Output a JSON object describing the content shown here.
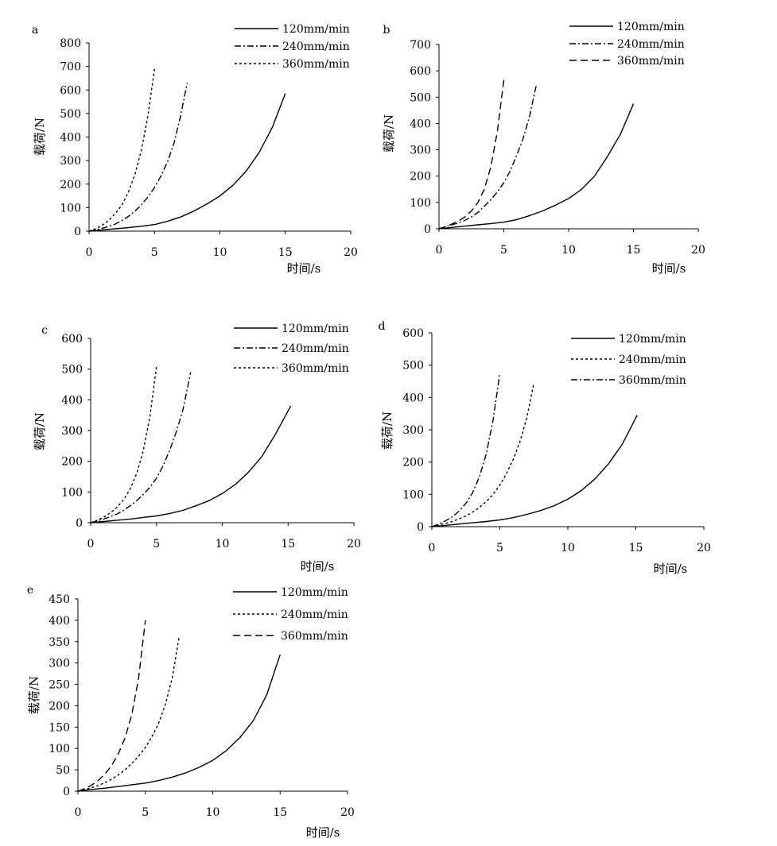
{
  "chart_data": [
    {
      "type": "line",
      "panel_label": "a",
      "xlabel": "时间/s",
      "ylabel": "载荷/N",
      "xlim": [
        0,
        20
      ],
      "ylim": [
        0,
        800
      ],
      "xticks": [
        0,
        5,
        10,
        15,
        20
      ],
      "yticks": [
        0,
        100,
        200,
        300,
        400,
        500,
        600,
        700,
        800
      ],
      "legend_position": "top-right",
      "series": [
        {
          "name": "120mm/min",
          "style": "solid",
          "x": [
            0,
            1,
            2,
            3,
            4,
            5,
            6,
            7,
            8,
            9,
            10,
            11,
            12,
            13,
            14,
            15
          ],
          "y": [
            0,
            5,
            10,
            15,
            21,
            28,
            42,
            60,
            85,
            115,
            150,
            195,
            255,
            335,
            440,
            585
          ]
        },
        {
          "name": "240mm/min",
          "style": "dashdot",
          "x": [
            0,
            0.5,
            1,
            1.5,
            2,
            2.5,
            3,
            3.5,
            4,
            4.5,
            5,
            5.5,
            6,
            6.5,
            7,
            7.5
          ],
          "y": [
            0,
            5,
            12,
            20,
            30,
            45,
            62,
            85,
            112,
            145,
            185,
            235,
            295,
            375,
            490,
            630
          ]
        },
        {
          "name": "360mm/min",
          "style": "dotted",
          "x": [
            0,
            0.5,
            1,
            1.5,
            2,
            2.5,
            3,
            3.5,
            4,
            4.5,
            5
          ],
          "y": [
            0,
            10,
            25,
            45,
            75,
            110,
            165,
            240,
            345,
            490,
            690
          ]
        }
      ]
    },
    {
      "type": "line",
      "panel_label": "b",
      "xlabel": "时间/s",
      "ylabel": "载荷/N",
      "xlim": [
        0,
        20
      ],
      "ylim": [
        0,
        700
      ],
      "xticks": [
        0,
        5,
        10,
        15,
        20
      ],
      "yticks": [
        0,
        100,
        200,
        300,
        400,
        500,
        600,
        700
      ],
      "legend_position": "top-right",
      "series": [
        {
          "name": "120mm/min",
          "style": "solid",
          "x": [
            0,
            1,
            2,
            3,
            4,
            5,
            6,
            7,
            8,
            9,
            10,
            11,
            12,
            13,
            14,
            15
          ],
          "y": [
            0,
            5,
            10,
            15,
            20,
            25,
            35,
            50,
            68,
            90,
            115,
            150,
            200,
            275,
            360,
            475
          ]
        },
        {
          "name": "240mm/min",
          "style": "dashdot",
          "x": [
            0,
            0.5,
            1,
            1.5,
            2,
            2.5,
            3,
            3.5,
            4,
            4.5,
            5,
            5.5,
            6,
            6.5,
            7,
            7.5
          ],
          "y": [
            0,
            8,
            15,
            22,
            32,
            45,
            62,
            85,
            110,
            140,
            175,
            220,
            280,
            345,
            430,
            545
          ]
        },
        {
          "name": "360mm/min",
          "style": "dashed",
          "x": [
            0,
            0.5,
            1,
            1.5,
            2,
            2.5,
            3,
            3.5,
            4,
            4.5,
            5
          ],
          "y": [
            0,
            8,
            18,
            30,
            45,
            68,
            100,
            150,
            235,
            370,
            565
          ]
        }
      ]
    },
    {
      "type": "line",
      "panel_label": "c",
      "xlabel": "时间/s",
      "ylabel": "载荷/N",
      "xlim": [
        0,
        20
      ],
      "ylim": [
        0,
        600
      ],
      "xticks": [
        0,
        5,
        10,
        15,
        20
      ],
      "yticks": [
        0,
        100,
        200,
        300,
        400,
        500,
        600
      ],
      "legend_position": "top-right",
      "series": [
        {
          "name": "120mm/min",
          "style": "solid",
          "x": [
            0,
            1,
            2,
            3,
            4,
            5,
            6,
            7,
            8,
            9,
            10,
            11,
            12,
            13,
            14,
            15.2
          ],
          "y": [
            0,
            4,
            8,
            12,
            17,
            22,
            30,
            40,
            55,
            72,
            95,
            125,
            165,
            215,
            285,
            380
          ]
        },
        {
          "name": "240mm/min",
          "style": "dashdot",
          "x": [
            0,
            0.5,
            1,
            1.5,
            2,
            2.5,
            3,
            3.5,
            4,
            4.5,
            5,
            5.5,
            6,
            6.5,
            7,
            7.6
          ],
          "y": [
            0,
            6,
            12,
            20,
            28,
            40,
            55,
            72,
            92,
            115,
            145,
            185,
            235,
            295,
            365,
            490
          ]
        },
        {
          "name": "360mm/min",
          "style": "dotted",
          "x": [
            0,
            0.5,
            1,
            1.5,
            2,
            2.5,
            3,
            3.5,
            4,
            4.5,
            5
          ],
          "y": [
            0,
            8,
            18,
            32,
            50,
            75,
            110,
            160,
            235,
            345,
            510
          ]
        }
      ]
    },
    {
      "type": "line",
      "panel_label": "d",
      "xlabel": "时间/s",
      "ylabel": "载荷/N",
      "xlim": [
        0,
        20
      ],
      "ylim": [
        0,
        600
      ],
      "xticks": [
        0,
        5,
        10,
        15,
        20
      ],
      "yticks": [
        0,
        100,
        200,
        300,
        400,
        500,
        600
      ],
      "legend_position": "top-right",
      "series": [
        {
          "name": "120mm/min",
          "style": "solid",
          "x": [
            0,
            1,
            2,
            3,
            4,
            5,
            6,
            7,
            8,
            9,
            10,
            11,
            12,
            13,
            14,
            15.1
          ],
          "y": [
            0,
            4,
            8,
            12,
            16,
            21,
            28,
            38,
            50,
            65,
            85,
            112,
            148,
            195,
            255,
            345
          ]
        },
        {
          "name": "240mm/min",
          "style": "dotted",
          "x": [
            0,
            0.5,
            1,
            1.5,
            2,
            2.5,
            3,
            3.5,
            4,
            4.5,
            5,
            5.5,
            6,
            6.5,
            7,
            7.5
          ],
          "y": [
            0,
            5,
            10,
            16,
            24,
            33,
            45,
            60,
            78,
            100,
            128,
            165,
            210,
            265,
            340,
            445
          ]
        },
        {
          "name": "360mm/min",
          "style": "dashdot",
          "x": [
            0,
            0.5,
            1,
            1.5,
            2,
            2.5,
            3,
            3.5,
            4,
            4.5,
            5
          ],
          "y": [
            0,
            8,
            18,
            30,
            48,
            72,
            105,
            155,
            225,
            330,
            475
          ]
        }
      ]
    },
    {
      "type": "line",
      "panel_label": "e",
      "xlabel": "时间/s",
      "ylabel": "载荷/N",
      "xlim": [
        0,
        20
      ],
      "ylim": [
        0,
        450
      ],
      "xticks": [
        0,
        5,
        10,
        15,
        20
      ],
      "yticks": [
        0,
        50,
        100,
        150,
        200,
        250,
        300,
        350,
        400,
        450
      ],
      "legend_position": "top-right",
      "series": [
        {
          "name": "120mm/min",
          "style": "solid",
          "x": [
            0,
            1,
            2,
            3,
            4,
            5,
            6,
            7,
            8,
            9,
            10,
            11,
            12,
            13,
            14,
            15
          ],
          "y": [
            0,
            4,
            7,
            11,
            15,
            19,
            25,
            33,
            43,
            56,
            72,
            95,
            125,
            165,
            225,
            320
          ]
        },
        {
          "name": "240mm/min",
          "style": "dotted",
          "x": [
            0,
            0.5,
            1,
            1.5,
            2,
            2.5,
            3,
            3.5,
            4,
            4.5,
            5,
            5.5,
            6,
            6.5,
            7,
            7.5
          ],
          "y": [
            0,
            4,
            8,
            13,
            20,
            28,
            38,
            50,
            65,
            82,
            102,
            128,
            160,
            205,
            265,
            360
          ]
        },
        {
          "name": "360mm/min",
          "style": "dashed",
          "x": [
            0,
            0.5,
            1,
            1.5,
            2,
            2.5,
            3,
            3.5,
            4,
            4.5,
            5
          ],
          "y": [
            0,
            6,
            14,
            25,
            40,
            60,
            88,
            125,
            180,
            265,
            400
          ]
        }
      ]
    }
  ]
}
